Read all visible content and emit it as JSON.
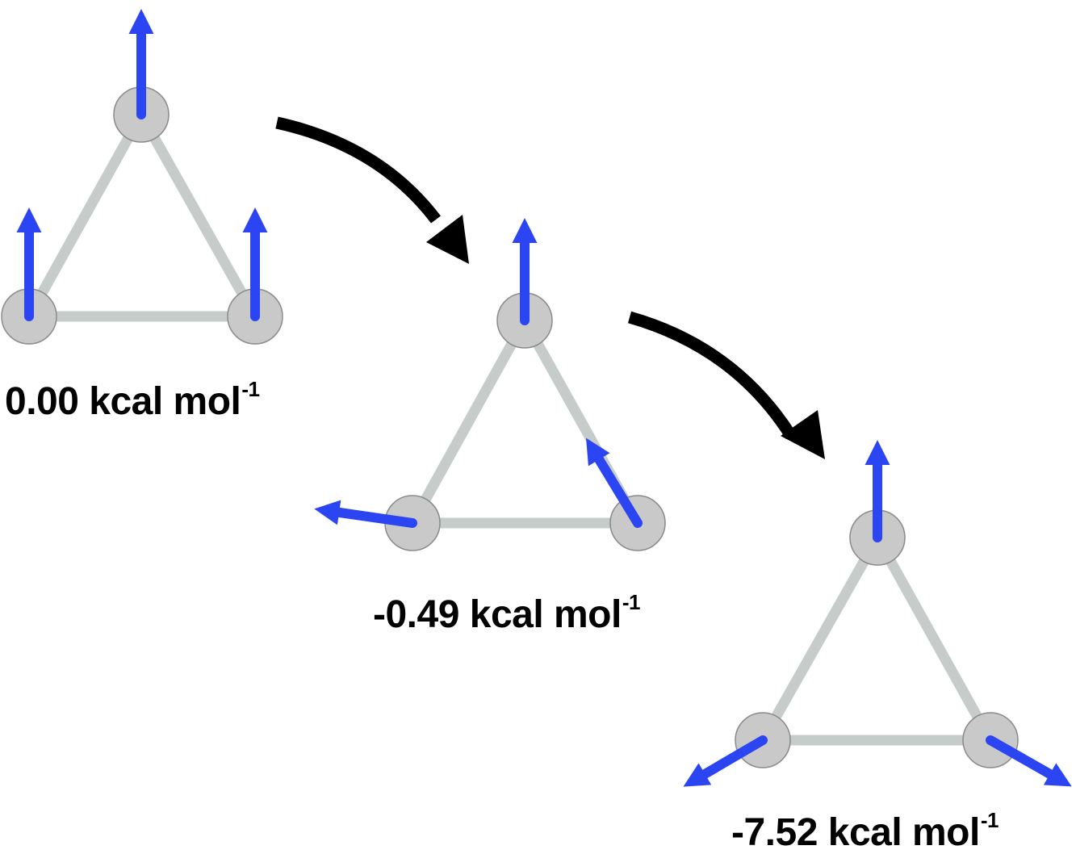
{
  "colors": {
    "bond": "#c5ccca",
    "atom_fill": "#c9c9c9",
    "atom_stroke": "#8a8a8a",
    "spin_arrow": "#2c45f2",
    "transition_arrow": "#000000",
    "text": "#000000"
  },
  "states": [
    {
      "energy_value": "0.00 kcal mol",
      "energy_superscript": "-1",
      "spin_arrangement": [
        "up",
        "up",
        "up"
      ]
    },
    {
      "energy_value": "-0.49 kcal mol",
      "energy_superscript": "-1",
      "spin_arrangement": [
        "up",
        "left",
        "upper-left"
      ]
    },
    {
      "energy_value": "-7.52 kcal mol",
      "energy_superscript": "-1",
      "spin_arrangement": [
        "up",
        "lower-left",
        "lower-right"
      ]
    }
  ],
  "transitions": [
    {
      "from_state": 1,
      "to_state": 2,
      "icon": "curved-arrow-icon"
    },
    {
      "from_state": 2,
      "to_state": 3,
      "icon": "curved-arrow-icon"
    }
  ]
}
